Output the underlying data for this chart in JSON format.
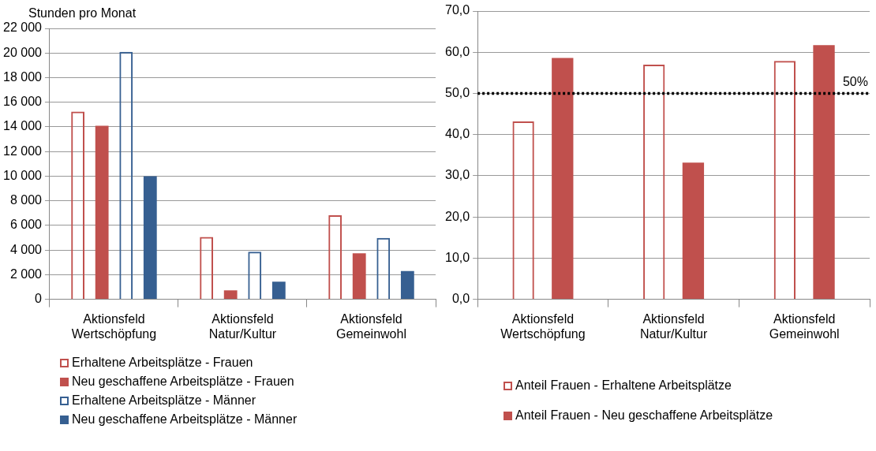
{
  "chart_data": [
    {
      "type": "bar",
      "ylabel": "Stunden pro Monat",
      "categories": [
        "Aktionsfeld\nWertschöpfung",
        "Aktionsfeld\nNatur/Kultur",
        "Aktionsfeld\nGemeinwohl"
      ],
      "series": [
        {
          "name": "Erhaltene Arbeitsplätze - Frauen",
          "color": "#c0504d",
          "line_style": "solid",
          "values": [
            15250,
            5070,
            6820
          ]
        },
        {
          "name": "Neu geschaffene Arbeitsplätze - Frauen",
          "color": "#c0504d",
          "values": [
            14100,
            720,
            3730
          ]
        },
        {
          "name": "Erhaltene Arbeitsplätze - Männer",
          "color": "#365f91",
          "line_style": "solid",
          "values": [
            20100,
            3860,
            4990
          ]
        },
        {
          "name": "Neu geschaffene Arbeitsplätze - Männer",
          "color": "#365f91",
          "values": [
            10000,
            1430,
            2300
          ]
        }
      ],
      "ylim": [
        0,
        22000
      ],
      "yticks": [
        0,
        {
          "value": 2000,
          "label": "2 000"
        },
        {
          "value": 4000,
          "label": "4 000"
        },
        {
          "value": 6000,
          "label": "6 000"
        },
        {
          "value": 8000,
          "label": "8 000"
        },
        {
          "value": 10000,
          "label": "10 000"
        },
        {
          "value": 12000,
          "label": "12 000"
        },
        {
          "value": 14000,
          "label": "14 000"
        },
        {
          "value": 16000,
          "label": "16 000"
        },
        {
          "value": 18000,
          "label": "18 000"
        },
        {
          "value": 20000,
          "label": "20 000"
        },
        {
          "value": 22000,
          "label": "22 000"
        }
      ],
      "grid": "y",
      "legend": "bottom"
    },
    {
      "type": "bar",
      "categories": [
        "Aktionsfeld\nWertschöpfung",
        "Aktionsfeld\nNatur/Kultur",
        "Aktionsfeld\nGemeinwohl"
      ],
      "series": [
        {
          "name": "Anteil Frauen - Erhaltene Arbeitsplätze",
          "color": "#c0504d",
          "line_style": "solid",
          "values": [
            43.2,
            57.0,
            57.9
          ]
        },
        {
          "name": "Anteil Frauen - Neu geschaffene Arbeitsplätze",
          "color": "#c0504d",
          "values": [
            58.6,
            33.2,
            61.7
          ]
        }
      ],
      "ylim": [
        0,
        70
      ],
      "yticks": [
        {
          "value": 0,
          "label": "0,0"
        },
        {
          "value": 10,
          "label": "10,0"
        },
        {
          "value": 20,
          "label": "20,0"
        },
        {
          "value": 30,
          "label": "30,0"
        },
        {
          "value": 40,
          "label": "40,0"
        },
        {
          "value": 50,
          "label": "50,0"
        },
        {
          "value": 60,
          "label": "60,0"
        },
        {
          "value": 70,
          "label": "70,0"
        }
      ],
      "ref_lines": [
        {
          "axis": "y",
          "value": 50,
          "label": "50%",
          "color": "#000000",
          "line_style": "dotted"
        }
      ],
      "grid": "y",
      "legend": "bottom"
    }
  ]
}
